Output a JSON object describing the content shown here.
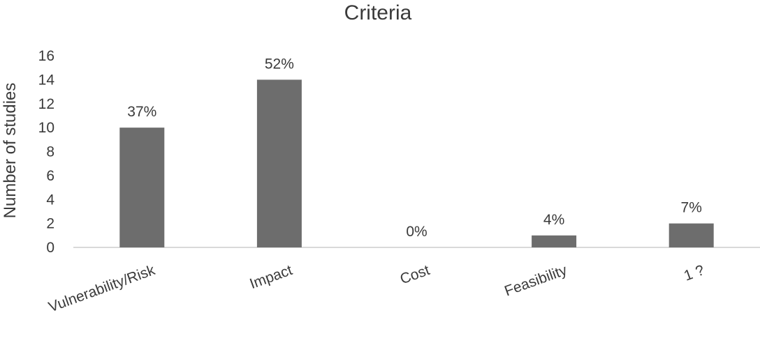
{
  "chart_data": {
    "type": "bar",
    "title": "Criteria",
    "xlabel": "",
    "ylabel": "Number of studies",
    "ylim": [
      0,
      16
    ],
    "yticks": [
      0,
      2,
      4,
      6,
      8,
      10,
      12,
      14,
      16
    ],
    "categories": [
      "Vulnerability/Risk",
      "Impact",
      "Cost",
      "Feasibility",
      "1 ?"
    ],
    "values": [
      10,
      14,
      0,
      1,
      2
    ],
    "data_labels": [
      "37%",
      "52%",
      "0%",
      "4%",
      "7%"
    ],
    "grid": false,
    "legend": "none",
    "bar_color": "#6d6d6d",
    "axis_color": "#d9d9d9",
    "text_color": "#3a3a3a"
  }
}
